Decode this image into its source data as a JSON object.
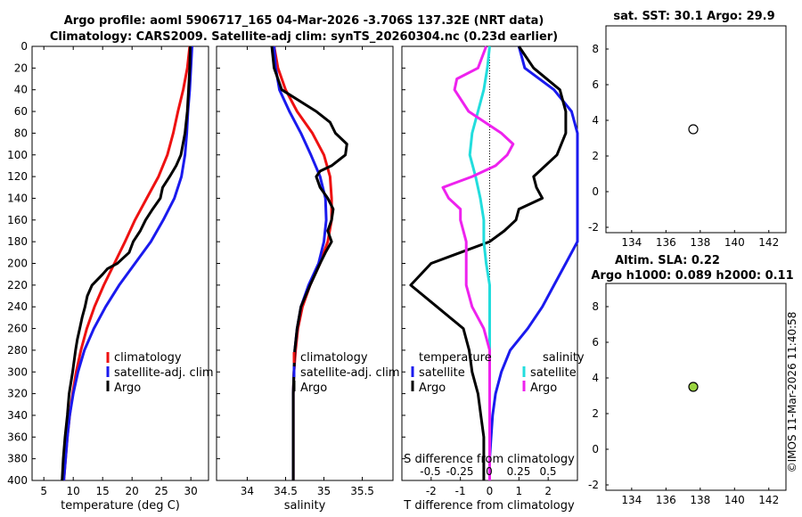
{
  "header": {
    "line1": "Argo profile: aoml 5906717_165 04-Mar-2026 -3.706S 137.32E (NRT data)",
    "line2": "Climatology: CARS2009. Satellite-adj clim: synTS_20260304.nc (0.23d earlier)"
  },
  "watermark": "©IMOS 11-Mar-2026 11:40:58",
  "colors": {
    "climatology": "#ee1111",
    "satellite": "#1a1aee",
    "argo": "#000000",
    "t_diff": "#ee22ee",
    "s_diff": "#22dddd"
  },
  "chart_data": [
    {
      "type": "line",
      "name": "temperature-profile",
      "xlabel": "temperature (deg C)",
      "ylabel": "",
      "xlim": [
        3,
        33
      ],
      "ylim": [
        400,
        0
      ],
      "xticks": [
        5,
        10,
        15,
        20,
        25,
        30
      ],
      "yticks": [
        0,
        20,
        40,
        60,
        80,
        100,
        120,
        140,
        160,
        180,
        200,
        220,
        240,
        260,
        280,
        300,
        320,
        340,
        360,
        380,
        400
      ],
      "legend": [
        "climatology",
        "satellite-adj. clim",
        "Argo"
      ],
      "series": [
        {
          "name": "climatology",
          "color": "#ee1111",
          "depth": [
            0,
            20,
            40,
            60,
            80,
            100,
            120,
            140,
            160,
            180,
            200,
            220,
            240,
            260,
            280,
            300,
            320,
            340,
            360,
            380,
            400
          ],
          "values": [
            29.8,
            29.4,
            28.7,
            27.8,
            27.0,
            26.0,
            24.5,
            22.5,
            20.5,
            18.8,
            17.0,
            15.2,
            13.6,
            12.3,
            11.3,
            10.5,
            9.9,
            9.4,
            9.0,
            8.7,
            8.4
          ]
        },
        {
          "name": "satellite-adj. clim",
          "color": "#1a1aee",
          "depth": [
            0,
            20,
            40,
            60,
            80,
            100,
            120,
            140,
            160,
            180,
            200,
            220,
            240,
            260,
            280,
            300,
            320,
            340,
            360,
            380,
            400
          ],
          "values": [
            30.2,
            30.0,
            29.8,
            29.5,
            29.3,
            29.0,
            28.4,
            27.2,
            25.3,
            23.2,
            20.5,
            17.8,
            15.5,
            13.5,
            11.9,
            10.8,
            10.0,
            9.4,
            9.0,
            8.7,
            8.4
          ]
        },
        {
          "name": "Argo",
          "color": "#000000",
          "depth": [
            0,
            20,
            40,
            60,
            80,
            100,
            110,
            120,
            130,
            140,
            150,
            160,
            170,
            180,
            190,
            200,
            205,
            210,
            220,
            230,
            240,
            250,
            260,
            270,
            280,
            300,
            320,
            340,
            360,
            380,
            400
          ],
          "values": [
            29.9,
            29.8,
            29.6,
            29.4,
            29.0,
            28.3,
            27.5,
            26.4,
            25.2,
            24.8,
            23.5,
            22.3,
            21.4,
            20.2,
            19.5,
            17.5,
            15.8,
            15.0,
            13.2,
            12.4,
            12.0,
            11.5,
            11.1,
            10.7,
            10.4,
            9.9,
            9.3,
            9.0,
            8.6,
            8.3,
            8.1
          ]
        }
      ]
    },
    {
      "type": "line",
      "name": "salinity-profile",
      "xlabel": "salinity",
      "xlim": [
        33.6,
        35.9
      ],
      "ylim": [
        400,
        0
      ],
      "xticks": [
        34,
        34.5,
        35,
        35.5
      ],
      "legend": [
        "climatology",
        "satellite-adj. clim",
        "Argo"
      ],
      "series": [
        {
          "name": "climatology",
          "color": "#ee1111",
          "depth": [
            0,
            20,
            40,
            60,
            80,
            100,
            120,
            140,
            160,
            180,
            200,
            220,
            240,
            260,
            280,
            300,
            320,
            340,
            360,
            380,
            400
          ],
          "values": [
            34.35,
            34.4,
            34.5,
            34.65,
            34.85,
            35.0,
            35.08,
            35.1,
            35.1,
            35.05,
            34.95,
            34.82,
            34.72,
            34.66,
            34.63,
            34.61,
            34.6,
            34.6,
            34.6,
            34.6,
            34.6
          ]
        },
        {
          "name": "satellite-adj. clim",
          "color": "#1a1aee",
          "depth": [
            0,
            20,
            40,
            60,
            80,
            100,
            120,
            140,
            160,
            180,
            200,
            220,
            240,
            260,
            280,
            300,
            320,
            340,
            360,
            380,
            400
          ],
          "values": [
            34.35,
            34.37,
            34.42,
            34.55,
            34.7,
            34.83,
            34.95,
            35.02,
            35.03,
            35.0,
            34.93,
            34.8,
            34.7,
            34.65,
            34.62,
            34.61,
            34.6,
            34.6,
            34.6,
            34.6,
            34.6
          ]
        },
        {
          "name": "Argo",
          "color": "#000000",
          "depth": [
            0,
            20,
            40,
            60,
            70,
            80,
            90,
            100,
            110,
            115,
            120,
            130,
            140,
            150,
            160,
            170,
            180,
            190,
            200,
            220,
            240,
            260,
            280,
            300,
            320,
            340,
            360,
            380,
            400
          ],
          "values": [
            34.32,
            34.35,
            34.45,
            34.9,
            35.08,
            35.15,
            35.3,
            35.28,
            35.1,
            34.95,
            34.9,
            34.95,
            35.05,
            35.12,
            35.1,
            35.05,
            35.1,
            35.02,
            34.95,
            34.82,
            34.7,
            34.65,
            34.62,
            34.61,
            34.6,
            34.6,
            34.6,
            34.6,
            34.6
          ]
        }
      ]
    },
    {
      "type": "line",
      "name": "difference-profile",
      "xlabel": "T difference from climatology",
      "xlabel_top": "S difference from climatology",
      "xlim": [
        -3,
        3
      ],
      "ylim": [
        400,
        0
      ],
      "xticks": [
        -2,
        -1,
        0,
        1,
        2
      ],
      "s_ticks": [
        "-0.5",
        "-0.25",
        "0",
        "0.25",
        "0.5"
      ],
      "zero_line": "dotted",
      "legend_titles": [
        "temperature",
        "salinity"
      ],
      "legend_left": [
        "satellite",
        "Argo"
      ],
      "legend_right": [
        "satellite",
        "Argo"
      ],
      "series": [
        {
          "name": "temperature satellite",
          "color": "#1a1aee",
          "depth": [
            0,
            20,
            40,
            60,
            80,
            100,
            120,
            140,
            160,
            180,
            200,
            220,
            240,
            260,
            280,
            300,
            320,
            340,
            360,
            380,
            400
          ],
          "values": [
            1.0,
            1.2,
            2.2,
            2.8,
            3.0,
            3.0,
            3.0,
            3.0,
            3.0,
            3.0,
            2.6,
            2.2,
            1.8,
            1.3,
            0.7,
            0.4,
            0.2,
            0.1,
            0.05,
            0.0,
            0.0
          ]
        },
        {
          "name": "temperature Argo",
          "color": "#000000",
          "depth": [
            0,
            20,
            40,
            60,
            80,
            100,
            120,
            130,
            140,
            150,
            160,
            170,
            180,
            200,
            220,
            240,
            260,
            280,
            300,
            320,
            340,
            360,
            380,
            400
          ],
          "values": [
            1.0,
            1.5,
            2.4,
            2.6,
            2.6,
            2.3,
            1.5,
            1.6,
            1.8,
            1.0,
            0.9,
            0.5,
            0.0,
            -2.0,
            -2.7,
            -1.8,
            -0.9,
            -0.7,
            -0.6,
            -0.4,
            -0.3,
            -0.2,
            -0.2,
            -0.2
          ]
        },
        {
          "name": "salinity satellite",
          "color": "#22dddd",
          "depth": [
            0,
            20,
            40,
            60,
            80,
            100,
            120,
            140,
            160,
            180,
            200,
            220,
            240,
            260,
            280,
            300,
            320,
            340,
            360,
            380,
            400
          ],
          "values": [
            0.0,
            -0.02,
            -0.05,
            -0.1,
            -0.15,
            -0.17,
            -0.12,
            -0.08,
            -0.05,
            -0.05,
            -0.03,
            0.0,
            0.0,
            0.0,
            0.0,
            0.0,
            0.0,
            0.0,
            0.0,
            0.0,
            0.0
          ]
        },
        {
          "name": "salinity Argo",
          "color": "#ee22ee",
          "depth": [
            0,
            20,
            30,
            40,
            60,
            80,
            90,
            100,
            110,
            120,
            130,
            140,
            150,
            160,
            180,
            200,
            220,
            240,
            260,
            280,
            300,
            320,
            340,
            360,
            380,
            400
          ],
          "values": [
            -0.03,
            -0.1,
            -0.28,
            -0.3,
            -0.18,
            0.1,
            0.2,
            0.15,
            0.05,
            -0.15,
            -0.4,
            -0.35,
            -0.25,
            -0.25,
            -0.2,
            -0.2,
            -0.2,
            -0.15,
            -0.05,
            0.0,
            0.0,
            0.0,
            0.0,
            0.0,
            0.0,
            0.0
          ]
        }
      ]
    },
    {
      "type": "heatmap",
      "name": "sst-map",
      "title": "sat. SST: 30.1 Argo: 29.9",
      "xlim": [
        132.5,
        143
      ],
      "ylim": [
        -2.3,
        9.3
      ],
      "xticks": [
        134,
        136,
        138,
        140,
        142
      ],
      "yticks": [
        -2,
        0,
        2,
        4,
        6,
        8
      ],
      "marker": {
        "lon": 137.32,
        "lat": 3.706
      }
    },
    {
      "type": "heatmap",
      "name": "sla-map",
      "title": "Altim. SLA: 0.22",
      "subtitle": "Argo h1000: 0.089 h2000: 0.11",
      "xlim": [
        132.5,
        143
      ],
      "ylim": [
        -2.3,
        9.3
      ],
      "xticks": [
        134,
        136,
        138,
        140,
        142
      ],
      "yticks": [
        -2,
        0,
        2,
        4,
        6,
        8
      ],
      "marker": {
        "lon": 137.32,
        "lat": 3.706
      }
    }
  ]
}
